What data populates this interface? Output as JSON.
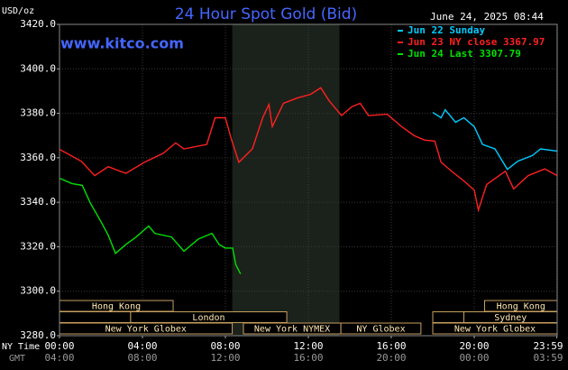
{
  "chart_data": {
    "type": "line",
    "title": "24 Hour Spot Gold (Bid)",
    "timestamp": "June 24, 2025 08:44",
    "source": "www.kitco.com",
    "y_label": "USD/oz",
    "x_label": "NY Time",
    "x2_label": "GMT",
    "xlim": [
      0,
      24
    ],
    "ylim": [
      3280,
      3420
    ],
    "yticks": [
      {
        "value": 3280,
        "label": "3280.0"
      },
      {
        "value": 3300,
        "label": "3300.0"
      },
      {
        "value": 3320,
        "label": "3320.0"
      },
      {
        "value": 3340,
        "label": "3340.0"
      },
      {
        "value": 3360,
        "label": "3360.0"
      },
      {
        "value": 3380,
        "label": "3380.0"
      },
      {
        "value": 3400,
        "label": "3400.0"
      },
      {
        "value": 3420,
        "label": "3420.0"
      }
    ],
    "xticks": [
      {
        "value": 0,
        "label": "00:00"
      },
      {
        "value": 4,
        "label": "04:00"
      },
      {
        "value": 8,
        "label": "08:00"
      },
      {
        "value": 12,
        "label": "12:00"
      },
      {
        "value": 16,
        "label": "16:00"
      },
      {
        "value": 20,
        "label": "20:00"
      },
      {
        "value": 23.983,
        "label": "23:59"
      }
    ],
    "x2ticks": [
      {
        "value": 0,
        "label": "04:00"
      },
      {
        "value": 4,
        "label": "08:00"
      },
      {
        "value": 8,
        "label": "12:00"
      },
      {
        "value": 12,
        "label": "16:00"
      },
      {
        "value": 16,
        "label": "20:00"
      },
      {
        "value": 20,
        "label": "00:00"
      },
      {
        "value": 23.983,
        "label": "03:59"
      }
    ],
    "grid": true,
    "highlight": [
      8.33,
      13.5
    ],
    "series": [
      {
        "name": "Jun 22 Sunday",
        "color": "#00ccff",
        "x": [
          18,
          18.4,
          18.6,
          19.1,
          19.5,
          20,
          20.4,
          21,
          21.6,
          22.1,
          22.8,
          23.2,
          24
        ],
        "values": [
          3380.4,
          3378,
          3381.6,
          3376,
          3378,
          3374,
          3366,
          3364,
          3354.8,
          3358.5,
          3361,
          3364,
          3363
        ]
      },
      {
        "name": "Jun 23 NY close 3367.97",
        "color": "#ff2020",
        "x": [
          0,
          1.04,
          1.7,
          2.35,
          3.2,
          4.1,
          5,
          5.6,
          6,
          7.1,
          7.5,
          8,
          8.3,
          8.65,
          9.3,
          9.8,
          10.1,
          10.26,
          10.8,
          11.5,
          12.1,
          12.6,
          13,
          13.6,
          14.1,
          14.5,
          14.9,
          15.8,
          16.5,
          17.1,
          17.6,
          18.1,
          18.4,
          18.9,
          19.5,
          20,
          20.2,
          20.6,
          21.5,
          21.9,
          22.6,
          23.4,
          24
        ],
        "values": [
          3363.8,
          3358.5,
          3352,
          3356,
          3353,
          3358,
          3362,
          3366.7,
          3364,
          3366,
          3378,
          3378,
          3368,
          3358,
          3364,
          3378,
          3384,
          3374,
          3384.5,
          3387,
          3388.5,
          3391.5,
          3385.7,
          3379,
          3383,
          3384.5,
          3379,
          3379.6,
          3374,
          3370,
          3368,
          3367.5,
          3358,
          3354,
          3349.6,
          3345.5,
          3336.5,
          3348,
          3354,
          3346,
          3352,
          3355,
          3352
        ]
      },
      {
        "name": "Jun 24 Last 3307.79",
        "color": "#00e000",
        "x": [
          0,
          0.6,
          1.1,
          1.5,
          2,
          2.35,
          2.7,
          3.2,
          3.7,
          4.3,
          4.6,
          5.4,
          6,
          6.7,
          7.35,
          7.7,
          8,
          8.35,
          8.5,
          8.73
        ],
        "values": [
          3350.8,
          3348.4,
          3347.6,
          3339.4,
          3331.3,
          3325.2,
          3317,
          3321,
          3324.4,
          3329.3,
          3326,
          3324.4,
          3318,
          3323.5,
          3326,
          3321,
          3319.4,
          3319.4,
          3312,
          3307.79
        ]
      }
    ],
    "sessions": [
      {
        "label": "Hong Kong",
        "row": 0,
        "start": 0,
        "end": 5.48
      },
      {
        "label": "Hong Kong",
        "row": 0,
        "start": 20.5,
        "end": 24
      },
      {
        "label": null,
        "row": 1,
        "start": 0,
        "end": 3.43
      },
      {
        "label": "London",
        "row": 1,
        "start": 3.43,
        "end": 10.96
      },
      {
        "label": null,
        "row": 1,
        "start": 18,
        "end": 19.5
      },
      {
        "label": "Sydney",
        "row": 1,
        "start": 19.5,
        "end": 24
      },
      {
        "label": "New York Globex",
        "row": 2,
        "start": 0,
        "end": 8.33
      },
      {
        "label": "New York NYMEX",
        "row": 2,
        "start": 8.87,
        "end": 13.57
      },
      {
        "label": "NY Globex",
        "row": 2,
        "start": 13.57,
        "end": 17.43
      },
      {
        "label": "New York Globex",
        "row": 2,
        "start": 18,
        "end": 24
      }
    ]
  }
}
